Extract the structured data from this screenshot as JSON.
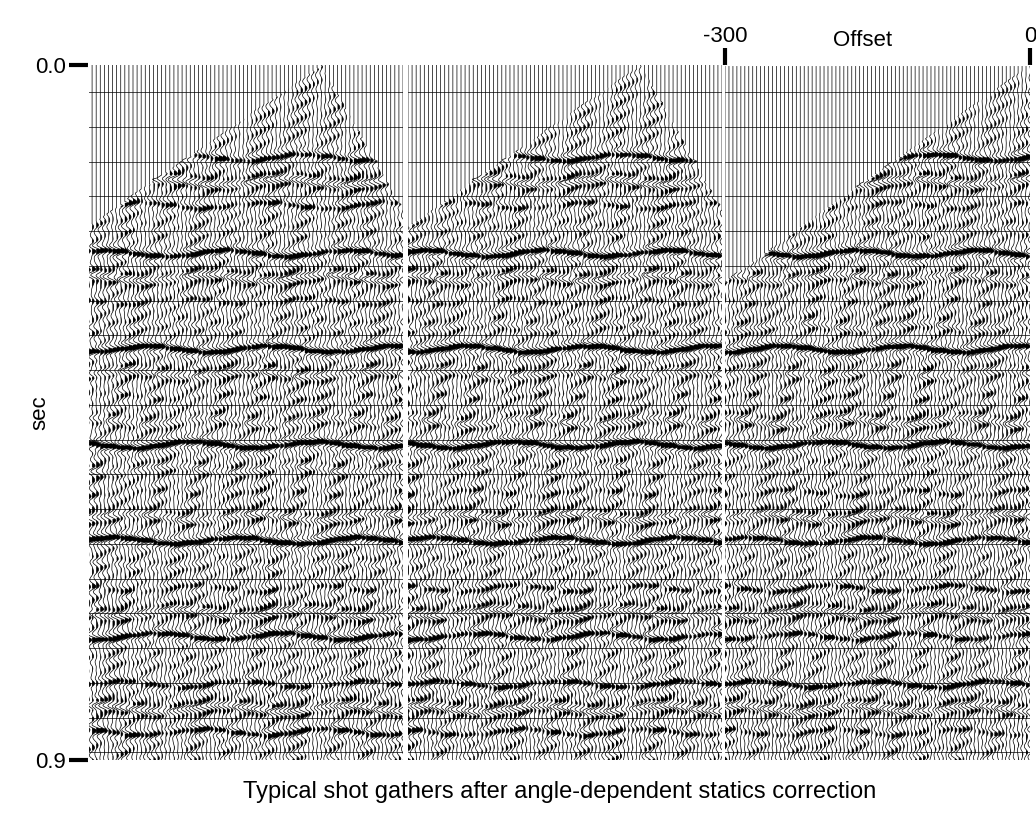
{
  "chart_data": {
    "type": "wiggle",
    "title": "Typical shot gathers after angle-dependent statics correction",
    "x_label": "Offset",
    "y_label": "sec",
    "xlim": [
      -300,
      0
    ],
    "xticks": [
      -300,
      0
    ],
    "ylim": [
      0.9,
      0.0
    ],
    "yticks": [
      {
        "value": 0.0,
        "label": "0.0"
      },
      {
        "value": 0.9,
        "label": "0.9"
      }
    ]
  }
}
